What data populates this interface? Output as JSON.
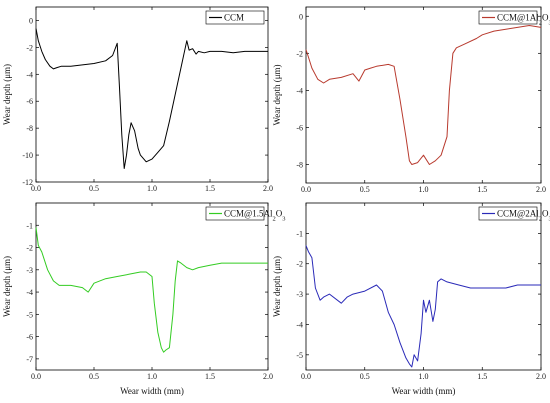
{
  "chart_data": [
    {
      "type": "line",
      "panel": "top-left",
      "xlabel": "",
      "ylabel": "Wear depth (μm)",
      "xlim": [
        0,
        2.0
      ],
      "ylim": [
        -12,
        1
      ],
      "xticks": [
        0.0,
        0.5,
        1.0,
        1.5,
        2.0
      ],
      "xtick_labels": [
        "0.0",
        "0.5",
        "1.0",
        "1.5",
        "2.0"
      ],
      "yticks": [
        0,
        -2,
        -4,
        -6,
        -8,
        -10,
        -12
      ],
      "ytick_labels": [
        "0",
        "-2",
        "-4",
        "-6",
        "-8",
        "-10",
        "-12"
      ],
      "legend": "top-right",
      "color": "#000000",
      "series": [
        {
          "name": "CCM",
          "x": [
            0.0,
            0.02,
            0.05,
            0.08,
            0.12,
            0.15,
            0.18,
            0.22,
            0.3,
            0.4,
            0.5,
            0.6,
            0.66,
            0.7,
            0.72,
            0.74,
            0.76,
            0.78,
            0.8,
            0.82,
            0.85,
            0.88,
            0.9,
            0.95,
            1.0,
            1.05,
            1.1,
            1.15,
            1.2,
            1.25,
            1.3,
            1.32,
            1.35,
            1.38,
            1.4,
            1.45,
            1.5,
            1.6,
            1.7,
            1.8,
            1.9,
            2.0
          ],
          "y": [
            -0.6,
            -1.5,
            -2.3,
            -2.9,
            -3.4,
            -3.6,
            -3.5,
            -3.4,
            -3.4,
            -3.3,
            -3.2,
            -3.0,
            -2.6,
            -1.7,
            -5.0,
            -8.5,
            -11.0,
            -10.0,
            -8.5,
            -7.6,
            -8.2,
            -9.5,
            -10.0,
            -10.5,
            -10.3,
            -9.8,
            -9.3,
            -7.5,
            -5.5,
            -3.5,
            -1.5,
            -2.2,
            -2.1,
            -2.5,
            -2.3,
            -2.4,
            -2.3,
            -2.3,
            -2.4,
            -2.3,
            -2.3,
            -2.3
          ]
        }
      ]
    },
    {
      "type": "line",
      "panel": "top-right",
      "xlabel": "",
      "ylabel": "Wear depth (μm)",
      "xlim": [
        0,
        2.0
      ],
      "ylim": [
        -9,
        0.5
      ],
      "xticks": [
        0.0,
        0.5,
        1.0,
        1.5,
        2.0
      ],
      "xtick_labels": [
        "0.0",
        "0.5",
        "1.0",
        "1.5",
        "2.0"
      ],
      "yticks": [
        0,
        -2,
        -4,
        -6,
        -8
      ],
      "ytick_labels": [
        "0",
        "-2",
        "-4",
        "-6",
        "-8"
      ],
      "legend": "top-right",
      "color": "#b83a2e",
      "series": [
        {
          "name": "CCM@1Al₂O₃",
          "x": [
            0.0,
            0.02,
            0.05,
            0.1,
            0.15,
            0.2,
            0.3,
            0.4,
            0.45,
            0.5,
            0.55,
            0.6,
            0.7,
            0.75,
            0.8,
            0.85,
            0.88,
            0.9,
            0.95,
            1.0,
            1.05,
            1.1,
            1.15,
            1.2,
            1.22,
            1.25,
            1.28,
            1.35,
            1.45,
            1.5,
            1.6,
            1.7,
            1.8,
            1.9,
            2.0
          ],
          "y": [
            -1.8,
            -2.2,
            -2.8,
            -3.4,
            -3.6,
            -3.4,
            -3.3,
            -3.1,
            -3.5,
            -2.9,
            -2.8,
            -2.7,
            -2.6,
            -2.7,
            -4.5,
            -6.5,
            -7.8,
            -8.0,
            -7.9,
            -7.5,
            -8.0,
            -7.8,
            -7.5,
            -6.5,
            -4.0,
            -2.0,
            -1.7,
            -1.5,
            -1.2,
            -1.0,
            -0.8,
            -0.7,
            -0.6,
            -0.5,
            -0.6
          ]
        }
      ]
    },
    {
      "type": "line",
      "panel": "bottom-left",
      "xlabel": "Wear width (mm)",
      "ylabel": "Wear depth (μm)",
      "xlim": [
        0,
        2.0
      ],
      "ylim": [
        -7.5,
        0
      ],
      "xticks": [
        0.0,
        0.5,
        1.0,
        1.5,
        2.0
      ],
      "xtick_labels": [
        "0.0",
        "0.5",
        "1.0",
        "1.5",
        "2.0"
      ],
      "yticks": [
        -1,
        -2,
        -3,
        -4,
        -5,
        -6,
        -7
      ],
      "ytick_labels": [
        "-1",
        "-2",
        "-3",
        "-4",
        "-5",
        "-6",
        "-7"
      ],
      "legend": "top-right",
      "color": "#33cc22",
      "series": [
        {
          "name": "CCM@1.5Al₂O₃",
          "x": [
            0.0,
            0.02,
            0.05,
            0.1,
            0.15,
            0.2,
            0.3,
            0.4,
            0.45,
            0.5,
            0.6,
            0.7,
            0.8,
            0.9,
            0.95,
            1.0,
            1.02,
            1.05,
            1.08,
            1.1,
            1.12,
            1.15,
            1.18,
            1.2,
            1.22,
            1.25,
            1.3,
            1.35,
            1.4,
            1.5,
            1.6,
            1.7,
            1.8,
            1.9,
            2.0
          ],
          "y": [
            -1.1,
            -1.9,
            -2.2,
            -3.0,
            -3.5,
            -3.7,
            -3.7,
            -3.8,
            -4.0,
            -3.6,
            -3.4,
            -3.3,
            -3.2,
            -3.1,
            -3.1,
            -3.3,
            -4.5,
            -5.8,
            -6.5,
            -6.7,
            -6.6,
            -6.5,
            -5.0,
            -3.5,
            -2.6,
            -2.7,
            -2.9,
            -3.0,
            -2.9,
            -2.8,
            -2.7,
            -2.7,
            -2.7,
            -2.7,
            -2.7
          ]
        }
      ]
    },
    {
      "type": "line",
      "panel": "bottom-right",
      "xlabel": "Wear width (mm)",
      "ylabel": "Wear depth (μm)",
      "xlim": [
        0,
        2.0
      ],
      "ylim": [
        -5.5,
        0
      ],
      "xticks": [
        0.0,
        0.5,
        1.0,
        1.5,
        2.0
      ],
      "xtick_labels": [
        "0.0",
        "0.5",
        "1.0",
        "1.5",
        "2.0"
      ],
      "yticks": [
        -1,
        -2,
        -3,
        -4,
        -5
      ],
      "ytick_labels": [
        "-1",
        "-2",
        "-3",
        "-4",
        "-5"
      ],
      "legend": "top-right",
      "color": "#2a2ab8",
      "series": [
        {
          "name": "CCM@2Al₂O₃",
          "x": [
            0.0,
            0.02,
            0.05,
            0.08,
            0.12,
            0.15,
            0.2,
            0.3,
            0.35,
            0.4,
            0.5,
            0.6,
            0.65,
            0.7,
            0.75,
            0.8,
            0.85,
            0.88,
            0.9,
            0.92,
            0.95,
            0.98,
            1.0,
            1.02,
            1.05,
            1.08,
            1.1,
            1.12,
            1.15,
            1.2,
            1.3,
            1.4,
            1.5,
            1.6,
            1.7,
            1.8,
            1.9,
            2.0
          ],
          "y": [
            -1.4,
            -1.6,
            -1.8,
            -2.8,
            -3.2,
            -3.1,
            -3.0,
            -3.3,
            -3.1,
            -3.0,
            -2.9,
            -2.7,
            -2.9,
            -3.6,
            -4.0,
            -4.6,
            -5.1,
            -5.3,
            -5.4,
            -5.0,
            -5.2,
            -4.3,
            -3.2,
            -3.6,
            -3.2,
            -3.9,
            -3.5,
            -2.6,
            -2.5,
            -2.6,
            -2.7,
            -2.8,
            -2.8,
            -2.8,
            -2.8,
            -2.7,
            -2.7,
            -2.7
          ]
        }
      ]
    }
  ]
}
